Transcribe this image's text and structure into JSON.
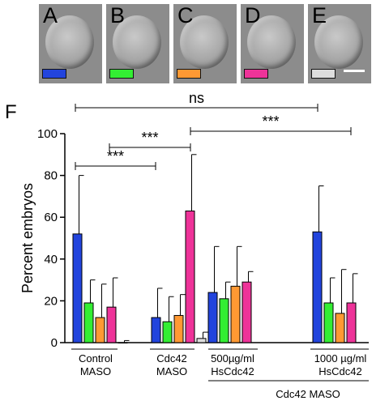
{
  "panels": [
    {
      "letter": "A",
      "color": "#2244dd"
    },
    {
      "letter": "B",
      "color": "#33ee33"
    },
    {
      "letter": "C",
      "color": "#ff9933"
    },
    {
      "letter": "D",
      "color": "#ee3399"
    },
    {
      "letter": "E",
      "color": "#dddddd"
    }
  ],
  "chart_data": {
    "type": "bar",
    "panel_label": "F",
    "ylabel": "Percent embryos",
    "ylim": [
      0,
      100
    ],
    "yticks": [
      0,
      20,
      40,
      60,
      80,
      100
    ],
    "categories": [
      {
        "line1": "Control",
        "line2": "MASO"
      },
      {
        "line1": "Cdc42",
        "line2": "MASO"
      },
      {
        "line1": "500µg/ml",
        "line2": "HsCdc42"
      },
      {
        "line1": "1000 µg/ml",
        "line2": "HsCdc42"
      }
    ],
    "group_label": "Cdc42 MASO",
    "series": [
      {
        "color": "#2244dd",
        "values": [
          52,
          12,
          24,
          53
        ],
        "errors": [
          28,
          14,
          22,
          22
        ]
      },
      {
        "color": "#33ee33",
        "values": [
          19,
          10,
          21,
          19
        ],
        "errors": [
          11,
          12,
          8,
          12
        ]
      },
      {
        "color": "#ff9933",
        "values": [
          12,
          13,
          27,
          14
        ],
        "errors": [
          16,
          10,
          19,
          21
        ]
      },
      {
        "color": "#ee3399",
        "values": [
          17,
          63,
          29,
          19
        ],
        "errors": [
          14,
          27,
          5,
          14
        ]
      },
      {
        "color": "#dddddd",
        "values": [
          0,
          2,
          null,
          null
        ],
        "errors": [
          1,
          3,
          null,
          null
        ]
      }
    ],
    "significance": [
      {
        "label": "ns",
        "from": 0,
        "to": 3
      },
      {
        "label": "***",
        "from": 0,
        "to": 1
      },
      {
        "label": "***",
        "from": 0.4,
        "to": 1
      },
      {
        "label": "***",
        "from": 1,
        "to": 3
      }
    ]
  }
}
